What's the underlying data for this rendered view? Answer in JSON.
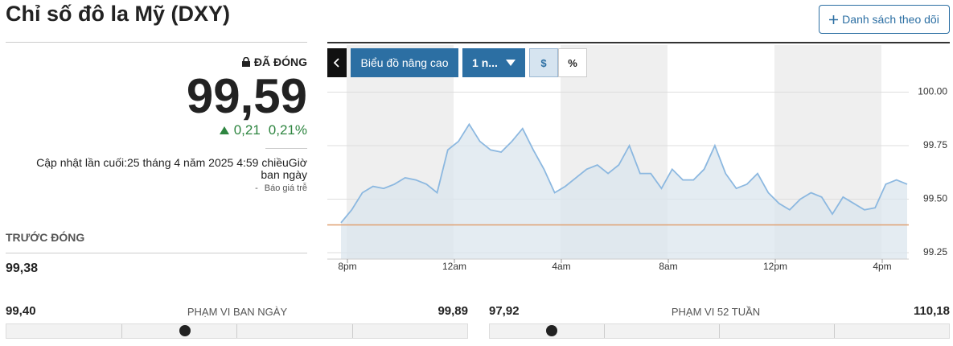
{
  "header": {
    "title": "Chỉ số đô la Mỹ (DXY)",
    "watchlist_button": "Danh sách theo dõi"
  },
  "quote": {
    "status": "ĐÃ ĐÓNG",
    "price": "99,59",
    "change": "0,21",
    "change_pct": "0,21%",
    "updated": "Cập nhật lần cuối:25 tháng 4 năm 2025 4:59 chiềuGiờ ban ngày",
    "delay": "Báo giá trễ",
    "prev_close_label": "TRƯỚC ĐÓNG",
    "prev_close": "99,38"
  },
  "ranges": [
    {
      "label": "PHẠM VI BAN NGÀY",
      "low": "99,40",
      "high": "99,89"
    },
    {
      "label": "PHẠM VI 52 TUẦN",
      "low": "97,92",
      "high": "110,18"
    }
  ],
  "toolbar": {
    "advanced": "Biểu đồ nâng cao",
    "period": "1 n...",
    "dollar": "$",
    "percent": "%"
  },
  "chart_data": {
    "type": "line",
    "color": "#8cb8e0",
    "fill": "#dbe5ee",
    "x_labels": [
      "8pm",
      "12am",
      "4am",
      "8am",
      "12pm",
      "4pm"
    ],
    "values": [
      99.39,
      99.45,
      99.53,
      99.56,
      99.55,
      99.57,
      99.6,
      99.59,
      99.57,
      99.53,
      99.73,
      99.77,
      99.85,
      99.77,
      99.73,
      99.72,
      99.77,
      99.83,
      99.73,
      99.64,
      99.53,
      99.56,
      99.6,
      99.64,
      99.66,
      99.62,
      99.66,
      99.75,
      99.62,
      99.62,
      99.55,
      99.64,
      99.59,
      99.59,
      99.64,
      99.75,
      99.62,
      99.55,
      99.57,
      99.62,
      99.53,
      99.48,
      99.45,
      99.5,
      99.53,
      99.51,
      99.43,
      99.51,
      99.48,
      99.45,
      99.46,
      99.57,
      99.59,
      99.57
    ],
    "ylim": [
      99.22,
      100.22
    ],
    "yticks": [
      {
        "value": 100,
        "label": "100.00"
      },
      {
        "value": 99.75,
        "label": "99.75"
      },
      {
        "value": 99.5,
        "label": "99.50"
      },
      {
        "value": 99.25,
        "label": "99.25"
      }
    ],
    "reference": 99.38,
    "reference_color": "#e0a070",
    "grid": true
  }
}
